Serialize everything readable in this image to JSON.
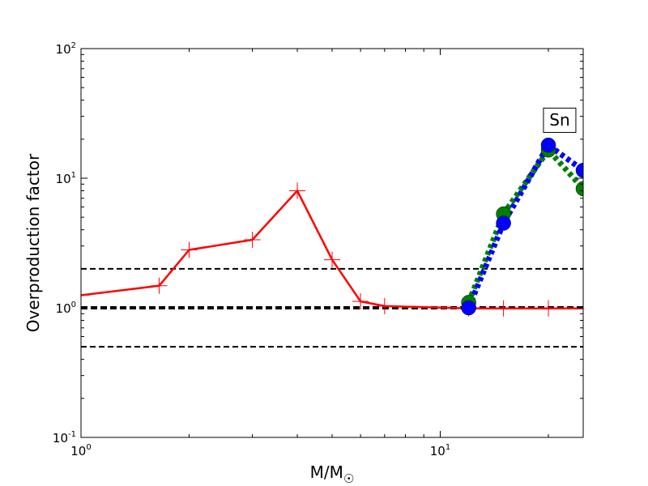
{
  "chart_data": {
    "type": "line",
    "xscale": "log",
    "yscale": "log",
    "xlim": [
      1,
      25
    ],
    "ylim": [
      0.1,
      100
    ],
    "xlabel": {
      "text": "M/M",
      "subscript": "☉"
    },
    "ylabel": "Overproduction factor",
    "x_ticks": [
      {
        "value": 1,
        "base": "10",
        "exp": "0"
      },
      {
        "value": 10,
        "base": "10",
        "exp": "1"
      }
    ],
    "y_ticks": [
      {
        "value": 0.1,
        "base": "10",
        "exp": "-1"
      },
      {
        "value": 1,
        "base": "10",
        "exp": "0"
      },
      {
        "value": 10,
        "base": "10",
        "exp": "1"
      },
      {
        "value": 100,
        "base": "10",
        "exp": "2"
      }
    ],
    "annotation": {
      "text": "Sn",
      "x": 21.5,
      "y": 28
    },
    "reference_lines": [
      {
        "y": 2,
        "color": "#000000",
        "style": "dashed",
        "width": 2
      },
      {
        "y": 1,
        "color": "#000000",
        "style": "dashed",
        "width": 4
      },
      {
        "y": 0.5,
        "color": "#000000",
        "style": "dashed",
        "width": 2
      }
    ],
    "series": [
      {
        "color": "#ff0000",
        "style": "solid",
        "marker": "plus",
        "width": 2.5,
        "x": [
          1,
          1.65,
          2,
          3,
          4,
          5,
          6,
          7,
          12,
          15,
          20,
          25
        ],
        "y": [
          1.25,
          1.48,
          2.8,
          3.35,
          8.0,
          2.35,
          1.12,
          1.03,
          0.99,
          0.99,
          0.99,
          0.99
        ]
      },
      {
        "color": "#008000",
        "style": "dotted",
        "marker": "circle",
        "width": 7,
        "x": [
          12,
          15,
          20,
          25
        ],
        "y": [
          1.1,
          5.3,
          16.5,
          8.3
        ]
      },
      {
        "color": "#0000ff",
        "style": "dotted",
        "marker": "circle",
        "width": 7,
        "x": [
          12,
          15,
          20,
          25
        ],
        "y": [
          1.0,
          4.5,
          18.0,
          11.5
        ]
      }
    ],
    "grid": false,
    "legend": "none"
  }
}
